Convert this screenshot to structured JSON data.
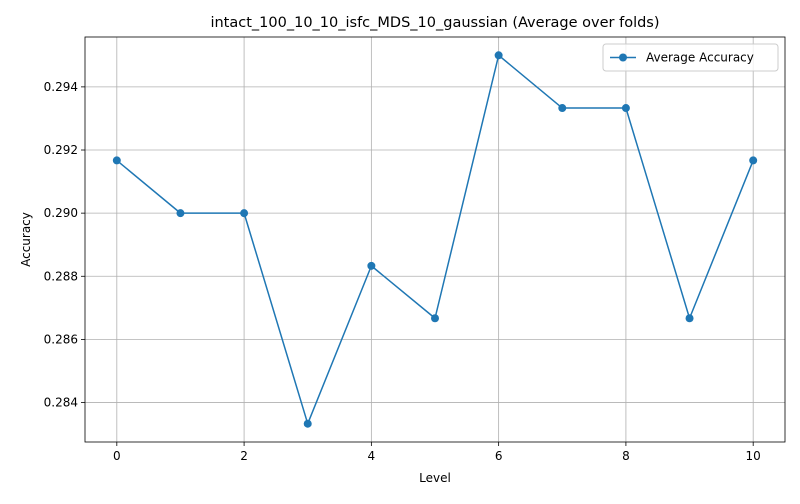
{
  "chart_data": {
    "type": "line",
    "title": "intact_100_10_10_isfc_MDS_10_gaussian (Average over folds)",
    "xlabel": "Level",
    "ylabel": "Accuracy",
    "x": [
      0,
      1,
      2,
      3,
      4,
      5,
      6,
      7,
      8,
      9,
      10
    ],
    "series": [
      {
        "name": "Average Accuracy",
        "values": [
          0.29167,
          0.29,
          0.29,
          0.28333,
          0.28833,
          0.28667,
          0.295,
          0.29333,
          0.29333,
          0.28667,
          0.29167
        ],
        "color": "#1f77b4",
        "marker": "circle"
      }
    ],
    "xlim": [
      -0.5,
      10.5
    ],
    "ylim": [
      0.28275,
      0.29558
    ],
    "xticks": [
      0,
      2,
      4,
      6,
      8,
      10
    ],
    "xtick_labels": [
      "0",
      "2",
      "4",
      "6",
      "8",
      "10"
    ],
    "yticks": [
      0.284,
      0.286,
      0.288,
      0.29,
      0.292,
      0.294
    ],
    "ytick_labels": [
      "0.284",
      "0.286",
      "0.288",
      "0.290",
      "0.292",
      "0.294"
    ],
    "grid": true,
    "legend_position": "top-right"
  }
}
